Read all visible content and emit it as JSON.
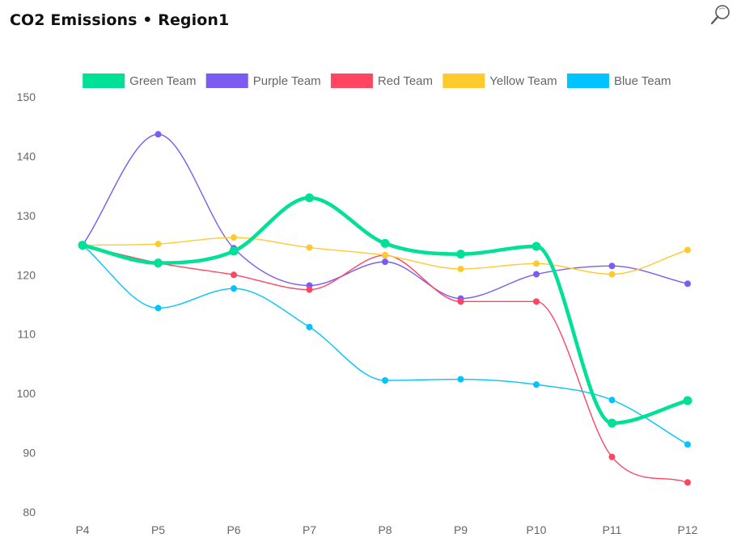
{
  "header": {
    "title": "CO2 Emissions • Region1",
    "zoom_icon": "magnifier-icon"
  },
  "chart_data": {
    "type": "line",
    "title": "CO2 Emissions • Region1",
    "xlabel": "",
    "ylabel": "",
    "categories": [
      "P4",
      "P5",
      "P6",
      "P7",
      "P8",
      "P9",
      "P10",
      "P11",
      "P12"
    ],
    "ylim": [
      80,
      150
    ],
    "yticks": [
      80,
      90,
      100,
      110,
      120,
      130,
      140,
      150
    ],
    "grid": false,
    "legend_position": "top-center",
    "series": [
      {
        "name": "Green Team",
        "color": "#00e096",
        "emphasis": true,
        "values": [
          125,
          122,
          124,
          133,
          125.3,
          123.5,
          124.8,
          95,
          98.8
        ]
      },
      {
        "name": "Purple Team",
        "color": "#7c5cf0",
        "values": [
          125,
          143.7,
          124.5,
          118.2,
          122.2,
          116,
          120.1,
          121.5,
          118.5
        ]
      },
      {
        "name": "Red Team",
        "color": "#ff4560",
        "values": [
          125,
          122,
          120,
          117.5,
          123.3,
          115.5,
          115.5,
          89.3,
          85
        ]
      },
      {
        "name": "Yellow Team",
        "color": "#feca2e",
        "values": [
          125,
          125.2,
          126.3,
          124.6,
          123.3,
          121,
          121.9,
          120.1,
          124.2
        ]
      },
      {
        "name": "Blue Team",
        "color": "#00c4ff",
        "values": [
          125,
          114.4,
          117.7,
          111.2,
          102.2,
          102.4,
          101.5,
          98.9,
          91.4
        ]
      }
    ]
  }
}
